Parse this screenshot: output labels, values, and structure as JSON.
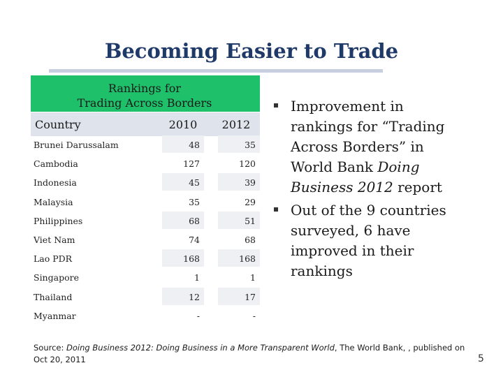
{
  "slide": {
    "title": "Becoming Easier to Trade",
    "page_number": "5"
  },
  "table": {
    "caption_line1": "Rankings for",
    "caption_line2": "Trading Across Borders",
    "col_country": "Country",
    "col_2010": "2010",
    "col_2012": "2012",
    "rows": [
      {
        "country": "Brunei Darussalam",
        "y2010": "48",
        "y2012": "35"
      },
      {
        "country": "Cambodia",
        "y2010": "127",
        "y2012": "120"
      },
      {
        "country": "Indonesia",
        "y2010": "45",
        "y2012": "39"
      },
      {
        "country": "Malaysia",
        "y2010": "35",
        "y2012": "29"
      },
      {
        "country": "Philippines",
        "y2010": "68",
        "y2012": "51"
      },
      {
        "country": "Viet Nam",
        "y2010": "74",
        "y2012": "68"
      },
      {
        "country": "Lao PDR",
        "y2010": "168",
        "y2012": "168"
      },
      {
        "country": "Singapore",
        "y2010": "1",
        "y2012": "1"
      },
      {
        "country": "Thailand",
        "y2010": "12",
        "y2012": "17"
      },
      {
        "country": "Myanmar",
        "y2010": "-",
        "y2012": "-"
      }
    ]
  },
  "bullets": {
    "b1_pre": "Improvement in rankings for “Trading Across Borders” in World Bank ",
    "b1_italic": "Doing Business 2012",
    "b1_post": " report",
    "b2": "Out of the 9 countries surveyed, 6 have improved in their rankings"
  },
  "source": {
    "label": "Source: ",
    "italic": "Doing Business 2012: Doing Business in a More Transparent World",
    "rest": ", The World Bank, , published on Oct 20, 2011"
  }
}
